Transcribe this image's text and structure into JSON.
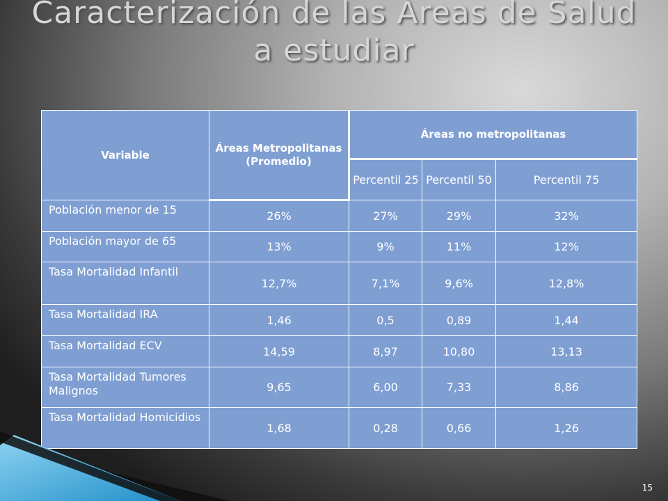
{
  "slide": {
    "title": "Caracterización de las Áreas de Salud a estudiar",
    "page_number": "15"
  },
  "table": {
    "headers": {
      "variable": "Variable",
      "metro": "Áreas Metropolitanas (Promedio)",
      "non_metro": "Áreas no metropolitanas",
      "p25": "Percentil 25",
      "p50": "Percentil 50",
      "p75": "Percentil 75"
    },
    "rows": [
      {
        "label": "Población menor de 15",
        "metro": "26%",
        "p25": "27%",
        "p50": "29%",
        "p75": "32%"
      },
      {
        "label": "Población mayor de 65",
        "metro": "13%",
        "p25": "9%",
        "p50": "11%",
        "p75": "12%"
      },
      {
        "label": "Tasa Mortalidad Infantil",
        "metro": "12,7%",
        "p25": "7,1%",
        "p50": "9,6%",
        "p75": "12,8%"
      },
      {
        "label": "Tasa Mortalidad IRA",
        "metro": "1,46",
        "p25": "0,5",
        "p50": "0,89",
        "p75": "1,44"
      },
      {
        "label": "Tasa Mortalidad ECV",
        "metro": "14,59",
        "p25": "8,97",
        "p50": "10,80",
        "p75": "13,13"
      },
      {
        "label": "Tasa Mortalidad Tumores Malignos",
        "metro": "9,65",
        "p25": "6,00",
        "p50": "7,33",
        "p75": "8,86"
      },
      {
        "label": "Tasa Mortalidad Homicidios",
        "metro": "1,68",
        "p25": "0,28",
        "p50": "0,66",
        "p75": "1,26"
      }
    ]
  },
  "colors": {
    "table_fill": "#7f9fd3",
    "accent_cyan": "#3aa9dc"
  }
}
